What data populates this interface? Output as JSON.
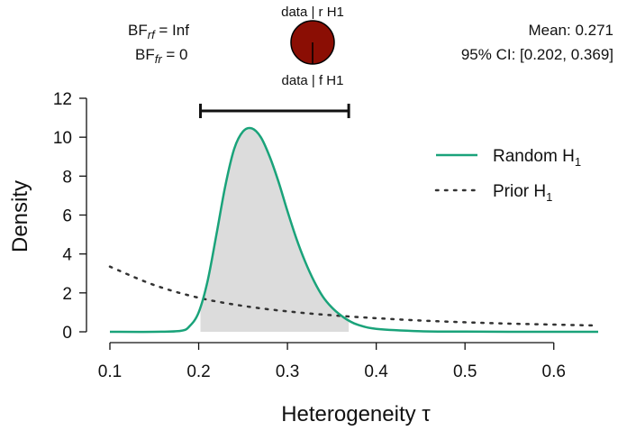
{
  "chart_data": {
    "type": "line",
    "xlabel": "Heterogeneity τ",
    "ylabel": "Density",
    "xlim": [
      0.1,
      0.65
    ],
    "ylim": [
      0,
      12
    ],
    "xticks": [
      "0.1",
      "0.2",
      "0.3",
      "0.4",
      "0.5",
      "0.6"
    ],
    "yticks": [
      "0",
      "2",
      "4",
      "6",
      "8",
      "10",
      "12"
    ],
    "grid": false,
    "legend_position": "top-right",
    "colors": {
      "posterior": "#1aa37a",
      "prior": "#333333",
      "ci_fill": "#dcdcdc",
      "pie": "#8b0e04"
    },
    "series": [
      {
        "name": "Random H",
        "name_sub": "1",
        "style": "solid",
        "x": [
          0.1,
          0.15,
          0.18,
          0.19,
          0.2,
          0.21,
          0.22,
          0.23,
          0.24,
          0.25,
          0.26,
          0.27,
          0.28,
          0.29,
          0.3,
          0.31,
          0.32,
          0.33,
          0.34,
          0.35,
          0.36,
          0.37,
          0.38,
          0.4,
          0.45,
          0.5,
          0.55,
          0.6,
          0.65
        ],
        "values": [
          0,
          0,
          0.05,
          0.3,
          1.0,
          2.6,
          5.0,
          7.5,
          9.4,
          10.3,
          10.45,
          10.0,
          9.0,
          7.7,
          6.2,
          4.8,
          3.6,
          2.6,
          1.8,
          1.25,
          0.85,
          0.55,
          0.35,
          0.15,
          0.03,
          0.01,
          0,
          0,
          0
        ]
      },
      {
        "name": "Prior H",
        "name_sub": "1",
        "style": "dotted",
        "x": [
          0.1,
          0.15,
          0.2,
          0.25,
          0.3,
          0.35,
          0.4,
          0.45,
          0.5,
          0.55,
          0.6,
          0.65
        ],
        "values": [
          3.35,
          2.4,
          1.75,
          1.33,
          1.05,
          0.85,
          0.7,
          0.58,
          0.49,
          0.42,
          0.37,
          0.32
        ]
      }
    ],
    "ci_interval": [
      0.202,
      0.369
    ],
    "ci_bar_height": 11.35,
    "annotations": {
      "bf_rf_label": "BF",
      "bf_rf_sub": "rf",
      "bf_rf_value": " = Inf",
      "bf_fr_label": "BF",
      "bf_fr_sub": "fr",
      "bf_fr_value": " = 0",
      "pie_top_label": "data | r H1",
      "pie_bottom_label": "data | f H1",
      "mean_text": "Mean: 0.271",
      "ci_text": "95% CI: [0.202, 0.369]"
    },
    "pie_fraction_random": 1.0
  }
}
